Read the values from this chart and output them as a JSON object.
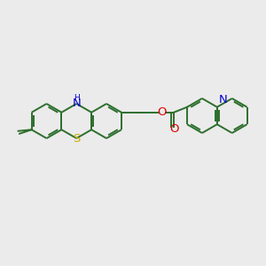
{
  "bg_color": "#ebebeb",
  "bond_color": "#2d6e2d",
  "N_color": "#0000cc",
  "S_color": "#ccaa00",
  "O_color": "#dd0000",
  "line_width": 1.4,
  "font_size": 8.5,
  "fig_w": 3.0,
  "fig_h": 3.0,
  "dpi": 100,
  "xlim": [
    0,
    10
  ],
  "ylim": [
    0,
    10
  ]
}
